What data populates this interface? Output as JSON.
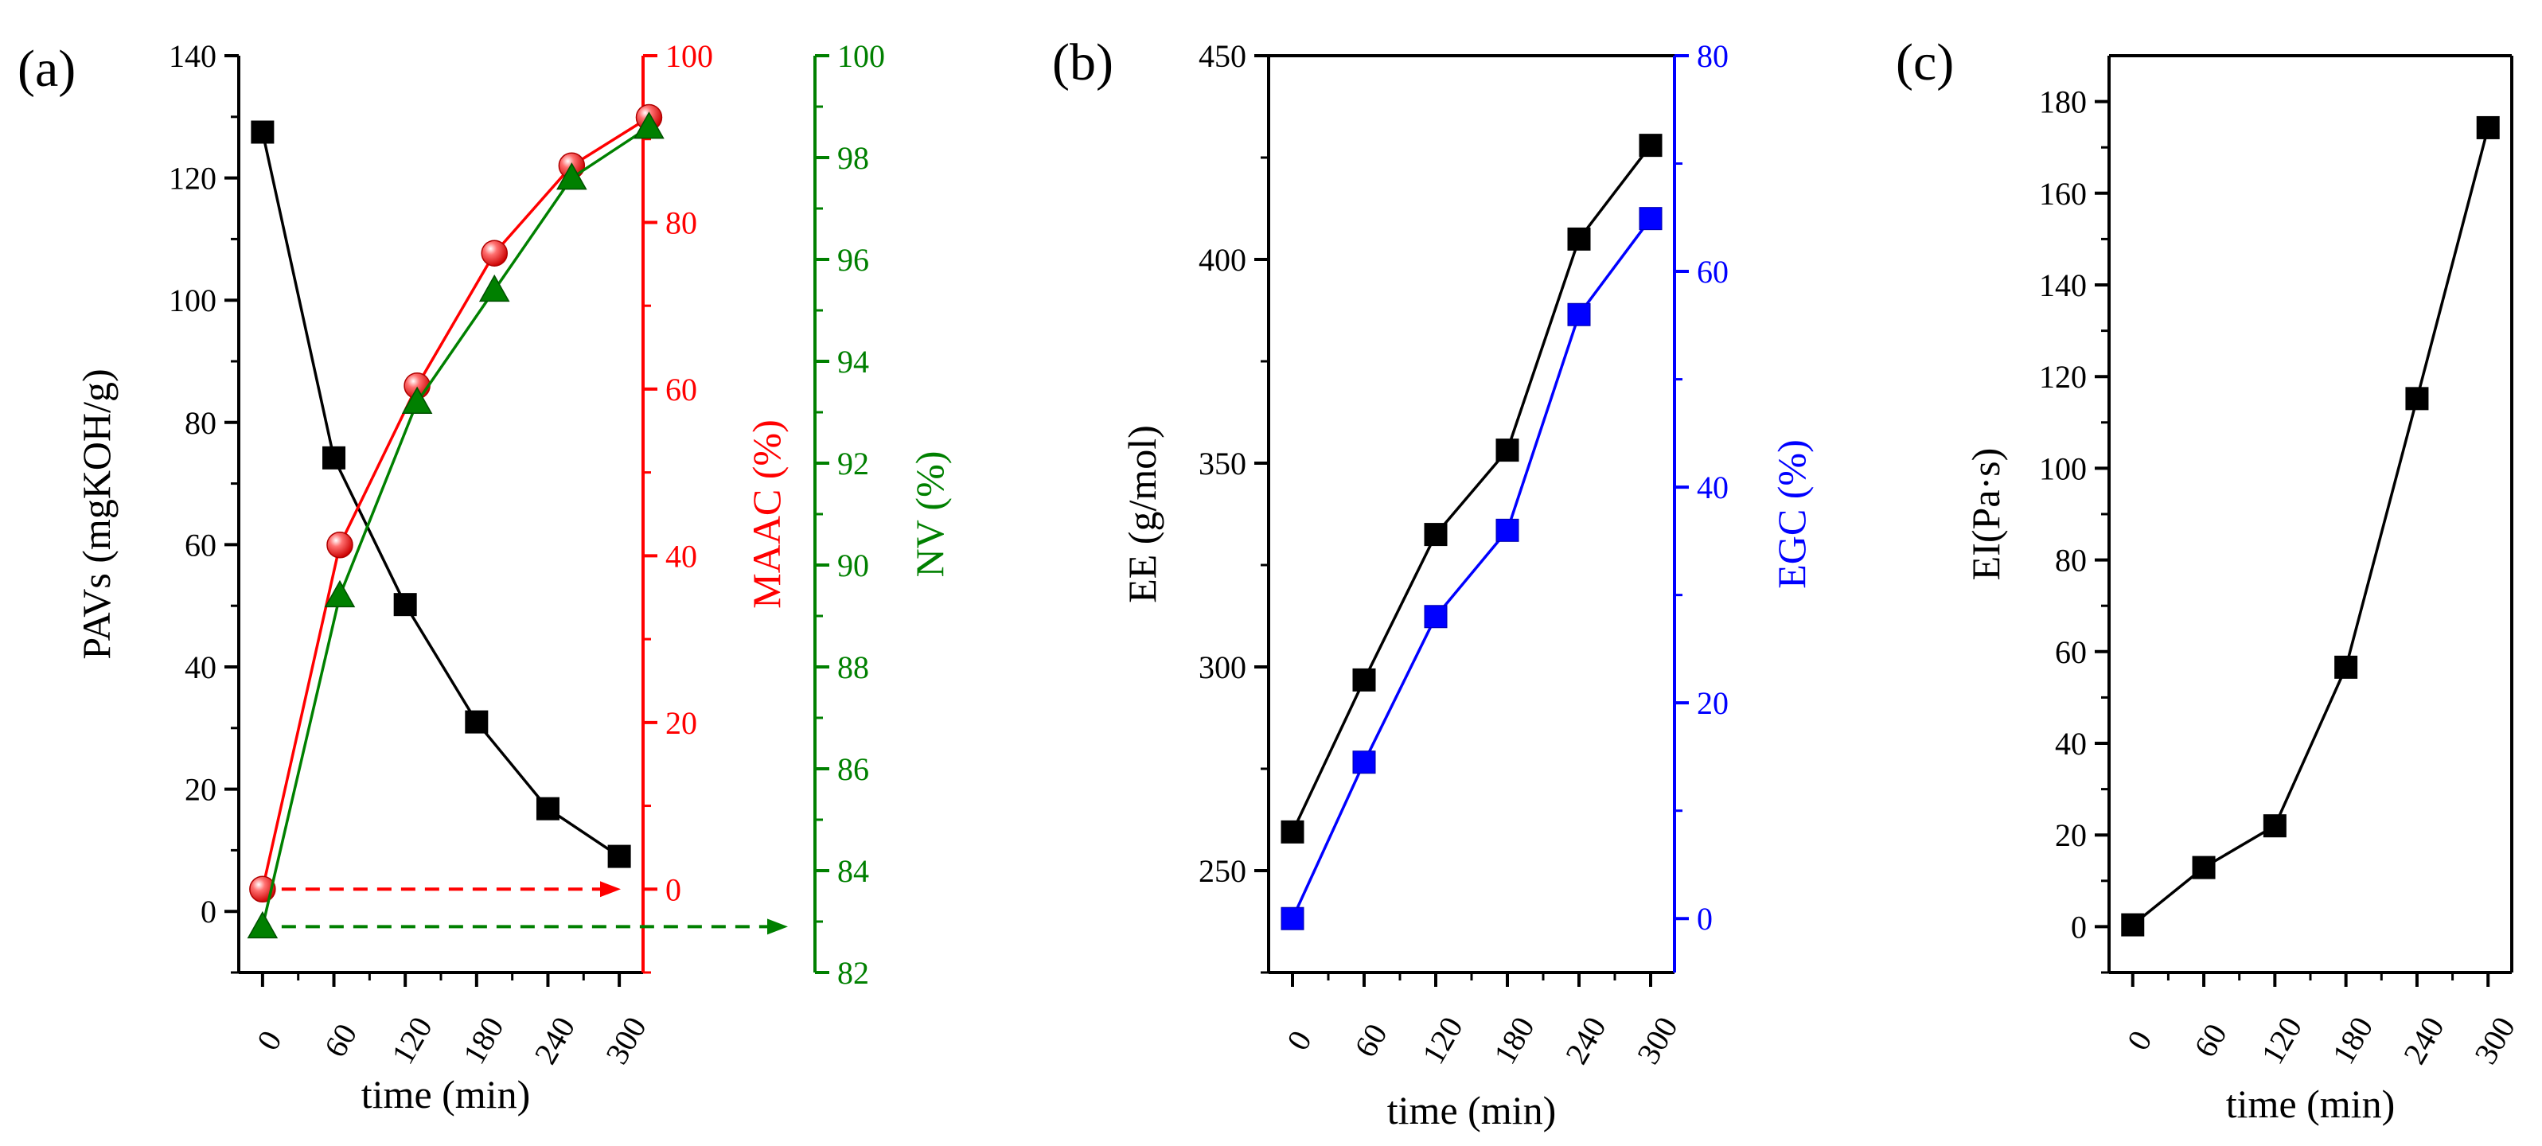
{
  "chart_data": [
    {
      "panel_label": "(a)",
      "type": "line",
      "xlabel": "time (min)",
      "x_tick_labels": [
        "0",
        "60",
        "120",
        "180",
        "240",
        "300"
      ],
      "x": [
        0,
        60,
        120,
        180,
        240,
        300
      ],
      "xlim": [
        -20,
        320
      ],
      "axes": [
        {
          "id": "left",
          "label": "PAVs (mgKOH/g)",
          "color": "#000000",
          "range": [
            -10,
            140
          ],
          "ticks": [
            "0",
            "20",
            "40",
            "60",
            "80",
            "100",
            "120",
            "140"
          ]
        },
        {
          "id": "red",
          "label": "MAAC (%)",
          "color": "#ff0000",
          "range": [
            -10,
            100
          ],
          "ticks": [
            "0",
            "20",
            "40",
            "60",
            "80",
            "100"
          ]
        },
        {
          "id": "green",
          "label": "NV (%)",
          "color": "#008000",
          "range": [
            82,
            100
          ],
          "ticks": [
            "82",
            "84",
            "86",
            "88",
            "90",
            "92",
            "94",
            "96",
            "98",
            "100"
          ]
        }
      ],
      "series": [
        {
          "name": "PAVs",
          "axis": "left",
          "color": "#000000",
          "marker": "square",
          "x": [
            0,
            60,
            120,
            180,
            240,
            300
          ],
          "values": [
            127.5,
            74.2,
            50.2,
            31,
            16.8,
            9
          ]
        },
        {
          "name": "MAAC",
          "axis": "red",
          "color": "#ff0000",
          "marker": "sphere",
          "x": [
            0,
            65,
            130,
            195,
            260,
            325
          ],
          "values": [
            0,
            41.3,
            60.4,
            76.3,
            86.8,
            92.6
          ]
        },
        {
          "name": "NV",
          "axis": "green",
          "color": "#008000",
          "marker": "triangle",
          "x": [
            0,
            65,
            130,
            195,
            260,
            325
          ],
          "values": [
            82.9,
            89.4,
            93.2,
            95.4,
            97.6,
            98.6
          ]
        }
      ],
      "annotations": [
        {
          "type": "dashed-arrow",
          "series": "MAAC",
          "direction": "right",
          "color": "#ff0000"
        },
        {
          "type": "dashed-arrow",
          "series": "NV",
          "direction": "right",
          "color": "#008000"
        }
      ]
    },
    {
      "panel_label": "(b)",
      "type": "line",
      "xlabel": "time (min)",
      "x_tick_labels": [
        "0",
        "60",
        "120",
        "180",
        "240",
        "300"
      ],
      "x": [
        0,
        60,
        120,
        180,
        240,
        300
      ],
      "xlim": [
        -20,
        320
      ],
      "axes": [
        {
          "id": "left",
          "label": "EE (g/mol)",
          "color": "#000000",
          "range": [
            225,
            450
          ],
          "ticks": [
            "250",
            "300",
            "350",
            "400",
            "450"
          ]
        },
        {
          "id": "blue",
          "label": "EGC (%)",
          "color": "#0000ff",
          "range": [
            -5,
            80
          ],
          "ticks": [
            "0",
            "20",
            "40",
            "60",
            "80"
          ]
        }
      ],
      "series": [
        {
          "name": "EE",
          "axis": "left",
          "color": "#000000",
          "marker": "square",
          "x": [
            0,
            60,
            120,
            180,
            240,
            300
          ],
          "values": [
            259.5,
            296.8,
            332.5,
            353.2,
            405,
            428
          ]
        },
        {
          "name": "EGC",
          "axis": "blue",
          "color": "#0000ff",
          "marker": "square",
          "x": [
            0,
            60,
            120,
            180,
            240,
            300
          ],
          "values": [
            0,
            14.5,
            28,
            36,
            56,
            64.9
          ]
        }
      ]
    },
    {
      "panel_label": "(c)",
      "type": "line",
      "xlabel": "time (min)",
      "x_tick_labels": [
        "0",
        "60",
        "120",
        "180",
        "240",
        "300"
      ],
      "x": [
        0,
        60,
        120,
        180,
        240,
        300
      ],
      "xlim": [
        -20,
        320
      ],
      "axes": [
        {
          "id": "left",
          "label": "EI(Pa·s)",
          "color": "#000000",
          "range": [
            -10,
            190
          ],
          "ticks": [
            "0",
            "20",
            "40",
            "60",
            "80",
            "100",
            "120",
            "140",
            "160",
            "180"
          ]
        }
      ],
      "series": [
        {
          "name": "EI",
          "axis": "left",
          "color": "#000000",
          "marker": "square",
          "x": [
            0,
            60,
            120,
            180,
            240,
            300
          ],
          "values": [
            0.4,
            12.9,
            22,
            56.6,
            115.2,
            174.3
          ]
        }
      ]
    }
  ]
}
